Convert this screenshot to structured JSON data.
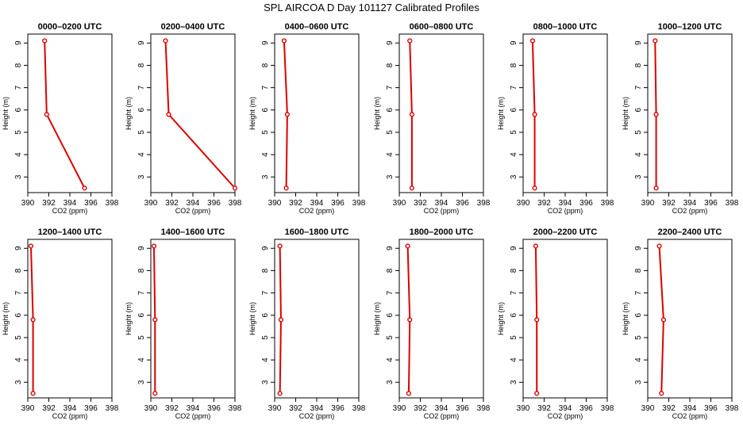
{
  "title": "SPL AIRCOA D  Day 101127  Calibrated Profiles",
  "chart_data": {
    "type": "line",
    "xlabel": "CO2 (ppm)",
    "ylabel": "Height (m)",
    "xlim": [
      390,
      398
    ],
    "xticks": [
      390,
      392,
      394,
      396,
      398
    ],
    "ylim": [
      2.3,
      9.4
    ],
    "yticks": [
      3,
      4,
      5,
      6,
      7,
      8,
      9
    ],
    "grid": false,
    "color": "#dd0000",
    "panels": [
      {
        "title": "0000–0200 UTC",
        "points": [
          {
            "co2": 395.4,
            "height": 2.5
          },
          {
            "co2": 391.8,
            "height": 5.8
          },
          {
            "co2": 391.6,
            "height": 9.1
          }
        ]
      },
      {
        "title": "0200–0400 UTC",
        "points": [
          {
            "co2": 398.0,
            "height": 2.5
          },
          {
            "co2": 391.7,
            "height": 5.8
          },
          {
            "co2": 391.4,
            "height": 9.1
          }
        ]
      },
      {
        "title": "0400–0600 UTC",
        "points": [
          {
            "co2": 391.1,
            "height": 2.5
          },
          {
            "co2": 391.2,
            "height": 5.8
          },
          {
            "co2": 390.9,
            "height": 9.1
          }
        ]
      },
      {
        "title": "0600–0800 UTC",
        "points": [
          {
            "co2": 391.2,
            "height": 2.5
          },
          {
            "co2": 391.2,
            "height": 5.8
          },
          {
            "co2": 391.0,
            "height": 9.1
          }
        ]
      },
      {
        "title": "0800–1000 UTC",
        "points": [
          {
            "co2": 391.1,
            "height": 2.5
          },
          {
            "co2": 391.1,
            "height": 5.8
          },
          {
            "co2": 390.9,
            "height": 9.1
          }
        ]
      },
      {
        "title": "1000–1200 UTC",
        "points": [
          {
            "co2": 390.8,
            "height": 2.5
          },
          {
            "co2": 390.8,
            "height": 5.8
          },
          {
            "co2": 390.7,
            "height": 9.1
          }
        ]
      },
      {
        "title": "1200–1400 UTC",
        "points": [
          {
            "co2": 390.5,
            "height": 2.5
          },
          {
            "co2": 390.5,
            "height": 5.8
          },
          {
            "co2": 390.3,
            "height": 9.1
          }
        ]
      },
      {
        "title": "1400–1600 UTC",
        "points": [
          {
            "co2": 390.4,
            "height": 2.5
          },
          {
            "co2": 390.4,
            "height": 5.8
          },
          {
            "co2": 390.3,
            "height": 9.1
          }
        ]
      },
      {
        "title": "1600–1800 UTC",
        "points": [
          {
            "co2": 390.5,
            "height": 2.5
          },
          {
            "co2": 390.6,
            "height": 5.8
          },
          {
            "co2": 390.5,
            "height": 9.1
          }
        ]
      },
      {
        "title": "1800–2000 UTC",
        "points": [
          {
            "co2": 390.9,
            "height": 2.5
          },
          {
            "co2": 391.0,
            "height": 5.8
          },
          {
            "co2": 390.8,
            "height": 9.1
          }
        ]
      },
      {
        "title": "2000–2200 UTC",
        "points": [
          {
            "co2": 391.3,
            "height": 2.5
          },
          {
            "co2": 391.3,
            "height": 5.8
          },
          {
            "co2": 391.2,
            "height": 9.1
          }
        ]
      },
      {
        "title": "2200–2400 UTC",
        "points": [
          {
            "co2": 391.3,
            "height": 2.5
          },
          {
            "co2": 391.5,
            "height": 5.8
          },
          {
            "co2": 391.1,
            "height": 9.1
          }
        ]
      }
    ]
  }
}
